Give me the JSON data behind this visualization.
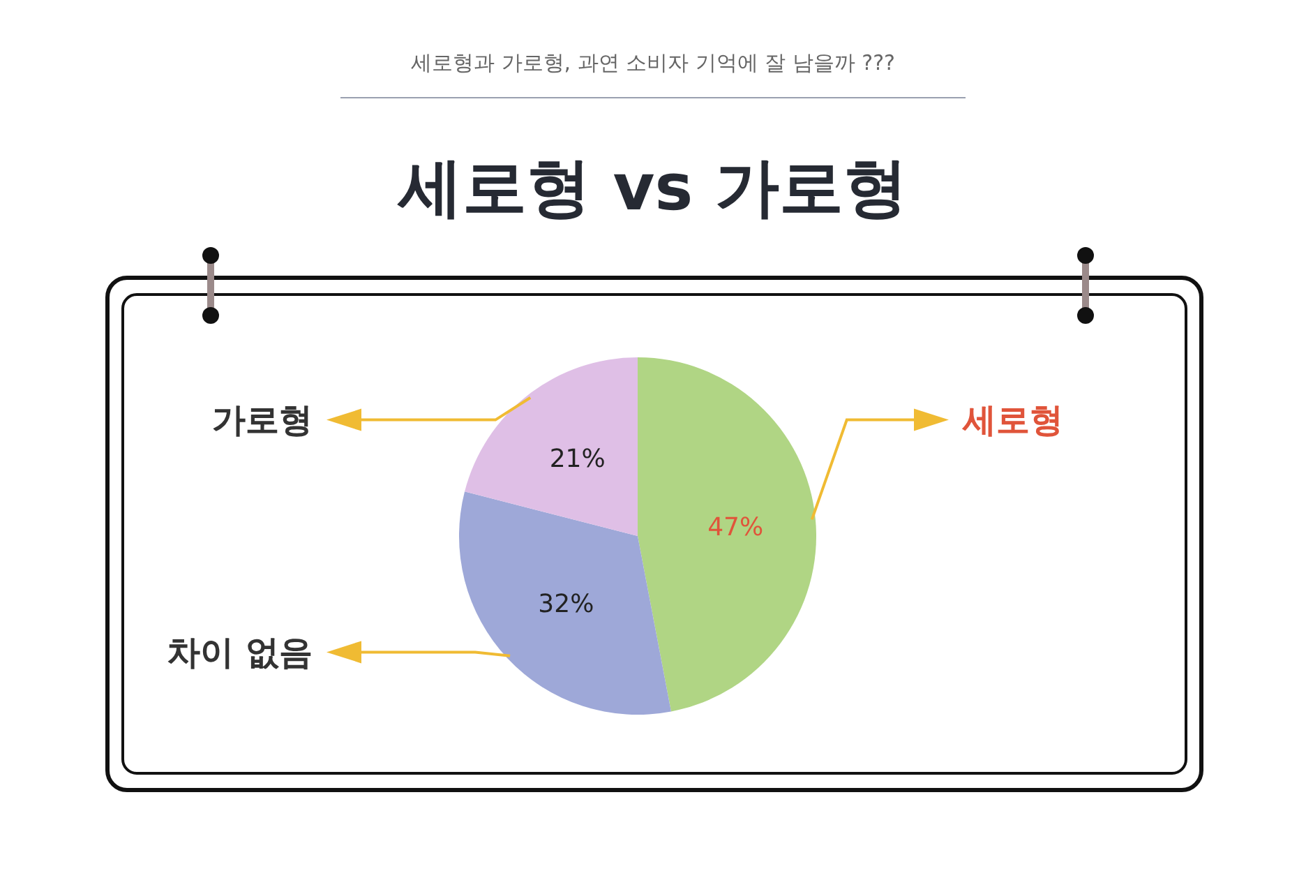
{
  "chart_data": {
    "type": "pie",
    "subtitle": "세로형과 가로형, 과연 소비자 기억에 잘 남을까 ???",
    "title": "세로형 vs 가로형",
    "categories": [
      "세로형",
      "차이 없음",
      "가로형"
    ],
    "values": [
      47,
      32,
      21
    ],
    "colors": [
      "#b0d584",
      "#9ea8d8",
      "#dfbfe6"
    ],
    "value_labels": [
      "47%",
      "32%",
      "21%"
    ]
  }
}
